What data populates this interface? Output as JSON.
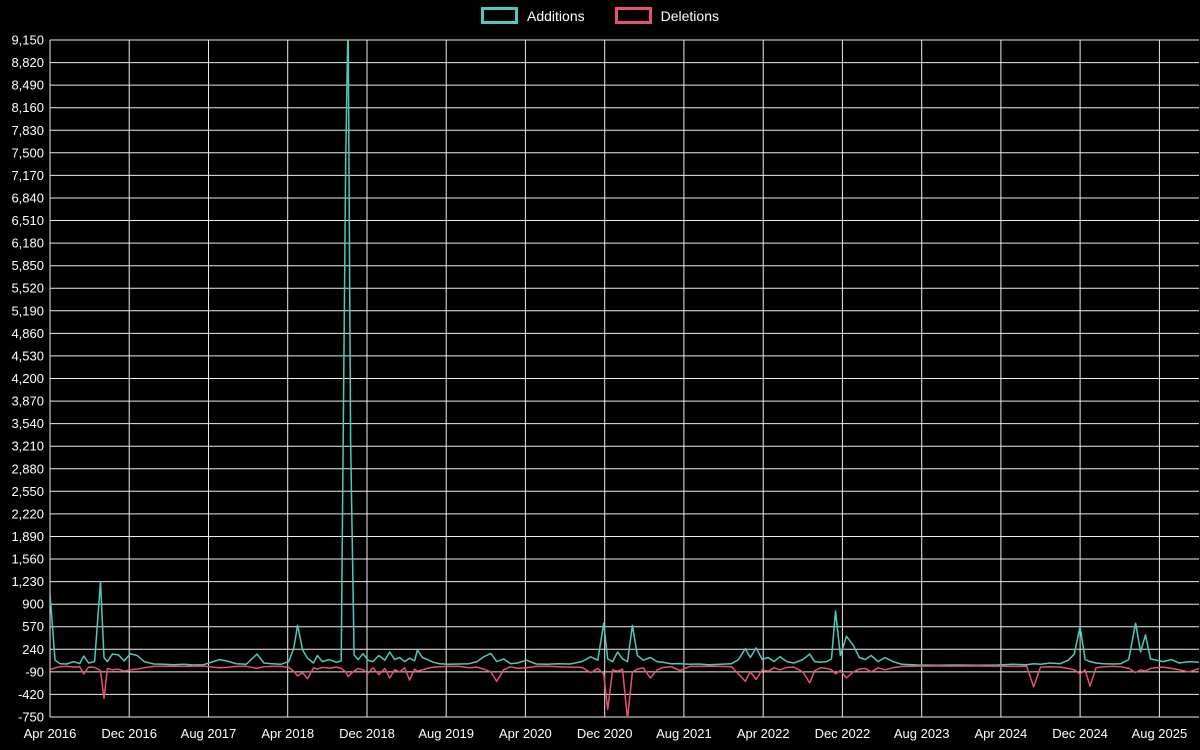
{
  "chart_data": {
    "type": "line",
    "title": "",
    "xlabel": "",
    "ylabel": "",
    "legend_position": "top-center",
    "grid": true,
    "background": "#000000",
    "grid_color": "#ededed",
    "text_color": "#ffffff",
    "x_unit": "months since Apr 2016",
    "xlim": [
      0,
      116
    ],
    "ylim": [
      -750,
      9150
    ],
    "xticks": {
      "positions": [
        0,
        8,
        16,
        24,
        32,
        40,
        48,
        56,
        64,
        72,
        80,
        88,
        96,
        104,
        112
      ],
      "labels": [
        "Apr 2016",
        "Dec 2016",
        "Aug 2017",
        "Apr 2018",
        "Dec 2018",
        "Aug 2019",
        "Apr 2020",
        "Dec 2020",
        "Aug 2021",
        "Apr 2022",
        "Dec 2022",
        "Aug 2023",
        "Apr 2024",
        "Dec 2024",
        "Aug 2025"
      ]
    },
    "yticks": {
      "values": [
        9150,
        8820,
        8490,
        8160,
        7830,
        7500,
        7170,
        6840,
        6510,
        6180,
        5850,
        5520,
        5190,
        4860,
        4530,
        4200,
        3870,
        3540,
        3210,
        2880,
        2550,
        2220,
        1890,
        1560,
        1230,
        900,
        570,
        240,
        -90,
        -420,
        -750
      ],
      "labels": [
        "9,150",
        "8,820",
        "8,490",
        "8,160",
        "7,830",
        "7,500",
        "7,170",
        "6,840",
        "6,510",
        "6,180",
        "5,850",
        "5,520",
        "5,190",
        "4,860",
        "4,530",
        "4,200",
        "3,870",
        "3,540",
        "3,210",
        "2,880",
        "2,550",
        "2,220",
        "1,890",
        "1,560",
        "1,230",
        "900",
        "570",
        "240",
        "-90",
        "-420",
        "-750"
      ]
    },
    "x": [
      0,
      0.5,
      1,
      1.7,
      2.4,
      3,
      3.4,
      3.9,
      4.5,
      5.1,
      5.45,
      5.8,
      6.3,
      6.9,
      7.5,
      8.1,
      8.8,
      9.5,
      10.5,
      11.5,
      12.5,
      13.5,
      14.5,
      15.5,
      16.5,
      17.1,
      17.8,
      18.8,
      19.8,
      20.9,
      21.6,
      22.4,
      23.3,
      24.1,
      24.6,
      25,
      25.5,
      26,
      26.6,
      27,
      27.5,
      28.2,
      28.9,
      29.4,
      29.85,
      30.1,
      30.35,
      30.7,
      31.1,
      31.6,
      32.1,
      32.6,
      33.2,
      33.8,
      34.3,
      34.8,
      35.3,
      35.8,
      36.3,
      36.8,
      37.1,
      37.6,
      38.1,
      38.7,
      39.3,
      40.3,
      41.3,
      42.3,
      43.1,
      43.8,
      44.5,
      45.1,
      45.8,
      46.5,
      47.2,
      48.1,
      49.1,
      50.2,
      51.3,
      52.5,
      53.7,
      54.6,
      55.3,
      55.9,
      56.3,
      56.8,
      57.3,
      57.8,
      58.3,
      58.8,
      59.3,
      59.9,
      60.6,
      61.3,
      61.9,
      62.7,
      63.6,
      64.6,
      65.5,
      66.5,
      67.7,
      68.8,
      69.5,
      70.2,
      70.7,
      71.3,
      71.9,
      72.5,
      73.1,
      73.7,
      74.4,
      75.1,
      76,
      76.7,
      77.2,
      77.8,
      78.4,
      78.9,
      79.3,
      79.8,
      80.4,
      81.1,
      81.7,
      82.3,
      82.9,
      83.6,
      84.3,
      85.1,
      86,
      87.6,
      89.6,
      91.6,
      93.7,
      95.7,
      97.2,
      98.6,
      99.3,
      100,
      101,
      102,
      102.8,
      103.4,
      104,
      104.5,
      105,
      105.6,
      106.4,
      107.3,
      108.1,
      108.9,
      109.6,
      110.1,
      110.6,
      111.1,
      111.7,
      112.4,
      113.2,
      114,
      115,
      116
    ],
    "series": [
      {
        "name": "Additions",
        "color": "#4fc9bb",
        "values": [
          1050,
          80,
          30,
          25,
          60,
          30,
          140,
          40,
          60,
          1230,
          120,
          60,
          170,
          160,
          70,
          175,
          150,
          60,
          25,
          20,
          15,
          20,
          10,
          15,
          60,
          90,
          70,
          30,
          20,
          170,
          40,
          30,
          20,
          60,
          250,
          590,
          230,
          110,
          40,
          150,
          60,
          90,
          50,
          70,
          7400,
          9500,
          3300,
          160,
          90,
          175,
          80,
          60,
          150,
          80,
          200,
          90,
          120,
          60,
          110,
          70,
          230,
          120,
          90,
          50,
          30,
          20,
          25,
          30,
          60,
          130,
          180,
          60,
          100,
          30,
          40,
          80,
          25,
          20,
          30,
          25,
          60,
          130,
          80,
          620,
          100,
          60,
          200,
          100,
          60,
          590,
          150,
          80,
          120,
          60,
          50,
          30,
          30,
          20,
          25,
          15,
          20,
          30,
          90,
          250,
          120,
          260,
          90,
          120,
          60,
          130,
          60,
          40,
          90,
          170,
          60,
          50,
          60,
          100,
          800,
          150,
          430,
          300,
          120,
          90,
          150,
          60,
          120,
          60,
          20,
          10,
          8,
          10,
          8,
          10,
          20,
          15,
          30,
          20,
          40,
          30,
          80,
          170,
          570,
          90,
          60,
          40,
          30,
          25,
          30,
          90,
          620,
          200,
          450,
          100,
          80,
          60,
          90,
          40,
          60,
          50
        ]
      },
      {
        "name": "Deletions",
        "color": "#e8506e",
        "values": [
          -60,
          -30,
          -15,
          -10,
          -20,
          -15,
          -120,
          -20,
          -25,
          -70,
          -480,
          -40,
          -60,
          -50,
          -80,
          -60,
          -50,
          -30,
          -10,
          -8,
          -5,
          -10,
          -5,
          -5,
          -20,
          -30,
          -25,
          -10,
          -8,
          -40,
          -15,
          -10,
          -10,
          -25,
          -80,
          -150,
          -100,
          -190,
          -30,
          -50,
          -25,
          -35,
          -20,
          -40,
          -90,
          -160,
          -120,
          -80,
          -40,
          -60,
          -110,
          -30,
          -130,
          -40,
          -180,
          -60,
          -90,
          -30,
          -210,
          -50,
          -80,
          -60,
          -40,
          -20,
          -15,
          -10,
          -10,
          -30,
          -20,
          -50,
          -90,
          -230,
          -60,
          -15,
          -40,
          -30,
          -10,
          -8,
          -15,
          -20,
          -25,
          -100,
          -40,
          -120,
          -640,
          -60,
          -80,
          -50,
          -780,
          -90,
          -50,
          -30,
          -180,
          -60,
          -25,
          -15,
          -70,
          -10,
          -10,
          -8,
          -10,
          -15,
          -120,
          -230,
          -90,
          -200,
          -60,
          -80,
          -30,
          -60,
          -25,
          -20,
          -90,
          -250,
          -70,
          -30,
          -40,
          -60,
          -120,
          -70,
          -180,
          -90,
          -50,
          -40,
          -90,
          -30,
          -60,
          -30,
          -10,
          -5,
          -4,
          -5,
          -4,
          -5,
          -10,
          -8,
          -310,
          -20,
          -15,
          -20,
          -40,
          -60,
          -120,
          -60,
          -300,
          -30,
          -15,
          -10,
          -15,
          -40,
          -100,
          -60,
          -80,
          -40,
          -30,
          -20,
          -40,
          -60,
          -90,
          -40
        ]
      }
    ]
  }
}
